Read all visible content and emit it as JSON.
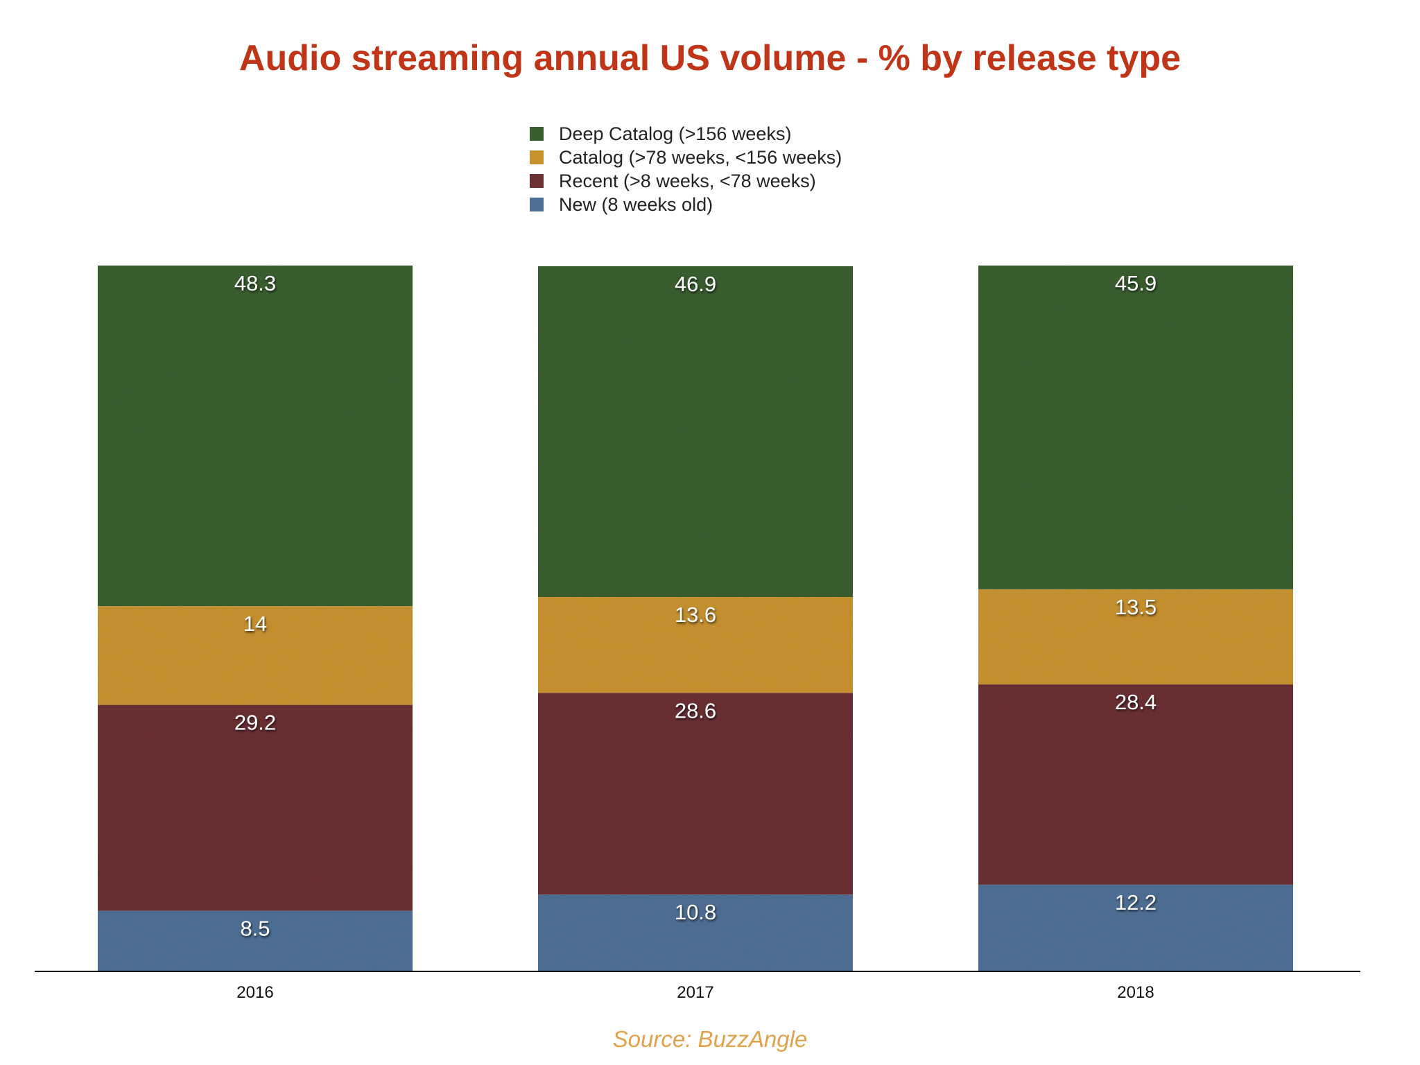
{
  "chart_data": {
    "type": "bar",
    "stacked": true,
    "title": "Audio streaming annual US volume - % by release type",
    "categories": [
      "2016",
      "2017",
      "2018"
    ],
    "series": [
      {
        "name": "New (8 weeks old)",
        "color": "#4e6e94",
        "values": [
          8.5,
          10.8,
          12.2
        ]
      },
      {
        "name": "Recent (>8 weeks, <78 weeks)",
        "color": "#6a3034",
        "values": [
          29.2,
          28.6,
          28.4
        ]
      },
      {
        "name": "Catalog (>78 weeks, <156 weeks)",
        "color": "#c7912e",
        "values": [
          14,
          13.6,
          13.5
        ]
      },
      {
        "name": "Deep Catalog (>156 weeks)",
        "color": "#3a5e30",
        "values": [
          48.3,
          46.9,
          45.9
        ]
      }
    ],
    "legend_order": [
      "Deep Catalog (>156 weeks)",
      "Catalog (>78 weeks, <156 weeks)",
      "Recent (>8 weeks, <78 weeks)",
      "New (8 weeks old)"
    ],
    "legend_position": "top-center",
    "ylim": [
      0,
      100
    ],
    "grid": false,
    "source": "Source: BuzzAngle"
  }
}
